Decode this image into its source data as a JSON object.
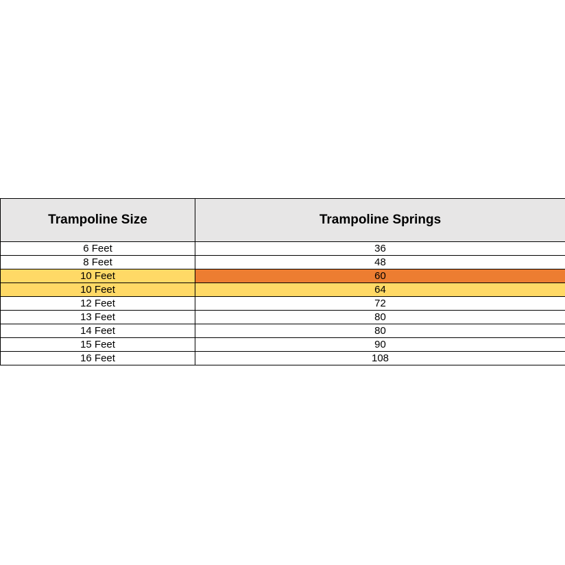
{
  "colors": {
    "white": "#FFFFFF",
    "yellow": "#FFD966",
    "orange": "#ED7D31",
    "header_gray": "#E7E6E6",
    "border": "#000000",
    "text": "#000000"
  },
  "table": {
    "headers": [
      "Trampoline Size",
      "Trampoline Springs"
    ],
    "rows": [
      {
        "size": "6 Feet",
        "springs": "36",
        "size_bg": "white",
        "springs_bg": "white"
      },
      {
        "size": "8 Feet",
        "springs": "48",
        "size_bg": "white",
        "springs_bg": "white"
      },
      {
        "size": "10 Feet",
        "springs": "60",
        "size_bg": "yellow",
        "springs_bg": "orange"
      },
      {
        "size": "10 Feet",
        "springs": "64",
        "size_bg": "yellow",
        "springs_bg": "yellow"
      },
      {
        "size": "12 Feet",
        "springs": "72",
        "size_bg": "white",
        "springs_bg": "white"
      },
      {
        "size": "13 Feet",
        "springs": "80",
        "size_bg": "white",
        "springs_bg": "white"
      },
      {
        "size": "14 Feet",
        "springs": "80",
        "size_bg": "white",
        "springs_bg": "white"
      },
      {
        "size": "15 Feet",
        "springs": "90",
        "size_bg": "white",
        "springs_bg": "white"
      },
      {
        "size": "16 Feet",
        "springs": "108",
        "size_bg": "white",
        "springs_bg": "white"
      }
    ]
  },
  "chart_data": {
    "type": "table",
    "title": "",
    "columns": [
      "Trampoline Size",
      "Trampoline Springs"
    ],
    "rows": [
      [
        "6 Feet",
        36
      ],
      [
        "8 Feet",
        48
      ],
      [
        "10 Feet",
        60
      ],
      [
        "10 Feet",
        64
      ],
      [
        "12 Feet",
        72
      ],
      [
        "13 Feet",
        80
      ],
      [
        "14 Feet",
        80
      ],
      [
        "15 Feet",
        90
      ],
      [
        "16 Feet",
        108
      ]
    ],
    "highlighted_rows": [
      {
        "row_index": 2,
        "size_cell_color": "#FFD966",
        "springs_cell_color": "#ED7D31"
      },
      {
        "row_index": 3,
        "size_cell_color": "#FFD966",
        "springs_cell_color": "#FFD966"
      }
    ],
    "layout": {
      "header_background": "#E7E6E6",
      "grid": true,
      "border_color": "#000000"
    }
  }
}
